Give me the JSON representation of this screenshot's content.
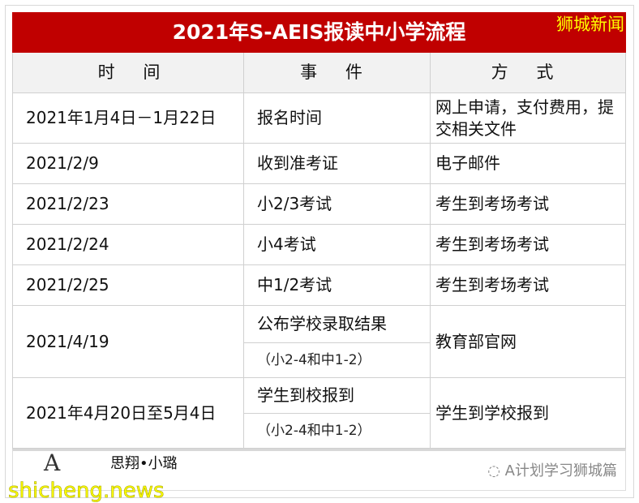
{
  "title": "2021年S-AEIS报读中小学流程",
  "watermark": "狮城新闻",
  "headers": [
    "时 间",
    "事 件",
    "方 式"
  ],
  "rows": [
    {
      "time": "2021年1月4日－1月22日",
      "event": "报名时间",
      "method": "网上申请，支付费用，提交相关文件"
    },
    {
      "time": "2021/2/9",
      "event": "收到准考证",
      "method": "电子邮件"
    },
    {
      "time": "2021/2/23",
      "event": "小2/3考试",
      "method": "考生到考场考试"
    },
    {
      "time": "2021/2/24",
      "event": "小4考试",
      "method": "考生到考场考试"
    },
    {
      "time": "2021/2/25",
      "event": "中1/2考试",
      "method": "考生到考场考试"
    },
    {
      "time": "2021/4/19",
      "event": "公布学校录取结果",
      "event_note": "（小2-4和中1-2）",
      "method": "教育部官网"
    },
    {
      "time": "2021年4月20日至5月4日",
      "event": "学生到校报到",
      "event_note": "（小2-4和中1-2）",
      "method": "学生到学校报到"
    }
  ],
  "footer": {
    "signature": "思翔•小璐",
    "wechat": "A计划学习狮城篇",
    "site": "shicheng.news",
    "logo_letter": "A"
  }
}
